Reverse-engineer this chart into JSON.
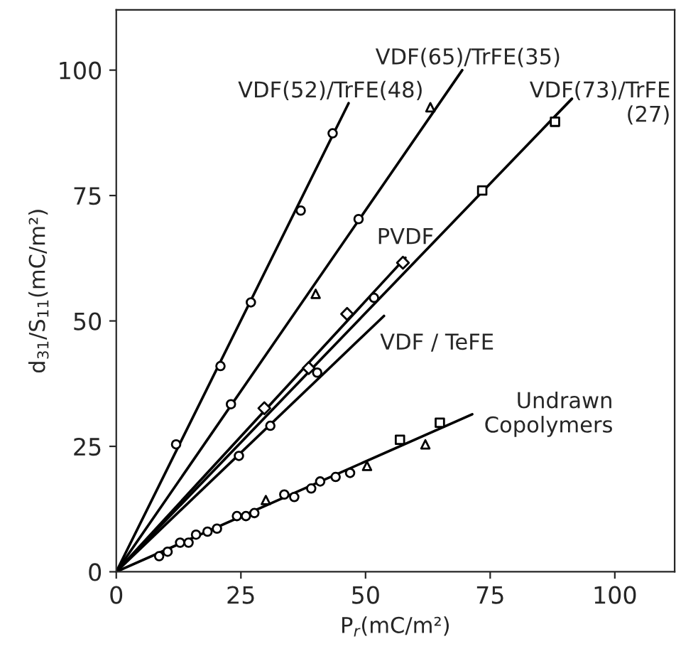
{
  "chart_data": {
    "type": "scatter",
    "xlabel": "P$_{r}$(mC/m²)",
    "ylabel": "d$_{31}$/S$_{11}$(mC/m²)",
    "xlim": [
      0,
      112
    ],
    "ylim": [
      0,
      112
    ],
    "xticks": [
      0,
      25,
      50,
      75,
      100
    ],
    "yticks": [
      0,
      25,
      50,
      75,
      100
    ],
    "grid": false,
    "legend": false,
    "series": [
      {
        "name": "VDF(52)/TrFE(48)",
        "type": "line",
        "color": "#000000",
        "x": [
          0,
          46.6
        ],
        "values": [
          0,
          93.4
        ]
      },
      {
        "name": "VDF(65)/TrFE(35)",
        "type": "line",
        "color": "#000000",
        "x": [
          0,
          69.4
        ],
        "values": [
          0,
          100
        ]
      },
      {
        "name": "VDF(73)/TrFE\n(27)",
        "type": "line",
        "color": "#000000",
        "x": [
          0,
          91.4
        ],
        "values": [
          0,
          94.3
        ]
      },
      {
        "name": "PVDF",
        "type": "line",
        "color": "#000000",
        "x": [
          0,
          58
        ],
        "values": [
          0,
          62.6
        ]
      },
      {
        "name": "VDF / TeFE",
        "type": "line",
        "color": "#000000",
        "x": [
          0,
          53.7
        ],
        "values": [
          0,
          51
        ]
      },
      {
        "name": "Undrawn\nCopolymers",
        "type": "line",
        "color": "#000000",
        "x": [
          0,
          71.4
        ],
        "values": [
          0,
          31.4
        ]
      },
      {
        "marker": "circle",
        "color": "#000000",
        "x": [
          12,
          20.9,
          27,
          37,
          43.4
        ],
        "values": [
          25.4,
          41,
          53.7,
          72,
          87.4
        ]
      },
      {
        "marker": "circle",
        "color": "#000000",
        "x": [
          23,
          48.6
        ],
        "values": [
          33.4,
          70.3
        ]
      },
      {
        "marker": "triangle",
        "color": "#000000",
        "x": [
          40,
          63
        ],
        "values": [
          55.4,
          92.6
        ]
      },
      {
        "marker": "square",
        "color": "#000000",
        "x": [
          73.4,
          88
        ],
        "values": [
          76,
          89.7
        ]
      },
      {
        "marker": "diamond",
        "color": "#000000",
        "x": [
          29.7,
          38.6,
          46.3,
          57.5
        ],
        "values": [
          32.6,
          40.6,
          51.4,
          61.6
        ]
      },
      {
        "marker": "circle",
        "color": "#000000",
        "x": [
          24.6,
          30.9,
          40.3,
          51.7
        ],
        "values": [
          23.1,
          29.1,
          39.7,
          54.6
        ]
      },
      {
        "marker": "circle",
        "color": "#000000",
        "x": [
          8.6,
          10.3,
          12.8,
          14.5,
          16,
          18.3,
          20.2,
          24.2,
          26,
          27.7,
          33.7,
          35.7,
          39.1,
          40.9,
          44,
          46.9
        ],
        "values": [
          3.1,
          4,
          5.8,
          5.8,
          7.4,
          8,
          8.6,
          11.1,
          11.1,
          11.7,
          15.4,
          14.9,
          16.6,
          18,
          18.9,
          19.7
        ]
      },
      {
        "marker": "triangle",
        "color": "#000000",
        "x": [
          30,
          50.3,
          62
        ],
        "values": [
          14.3,
          21.1,
          25.4
        ]
      },
      {
        "marker": "square",
        "color": "#000000",
        "x": [
          56.9,
          64.9
        ],
        "values": [
          26.3,
          29.7
        ]
      }
    ]
  }
}
